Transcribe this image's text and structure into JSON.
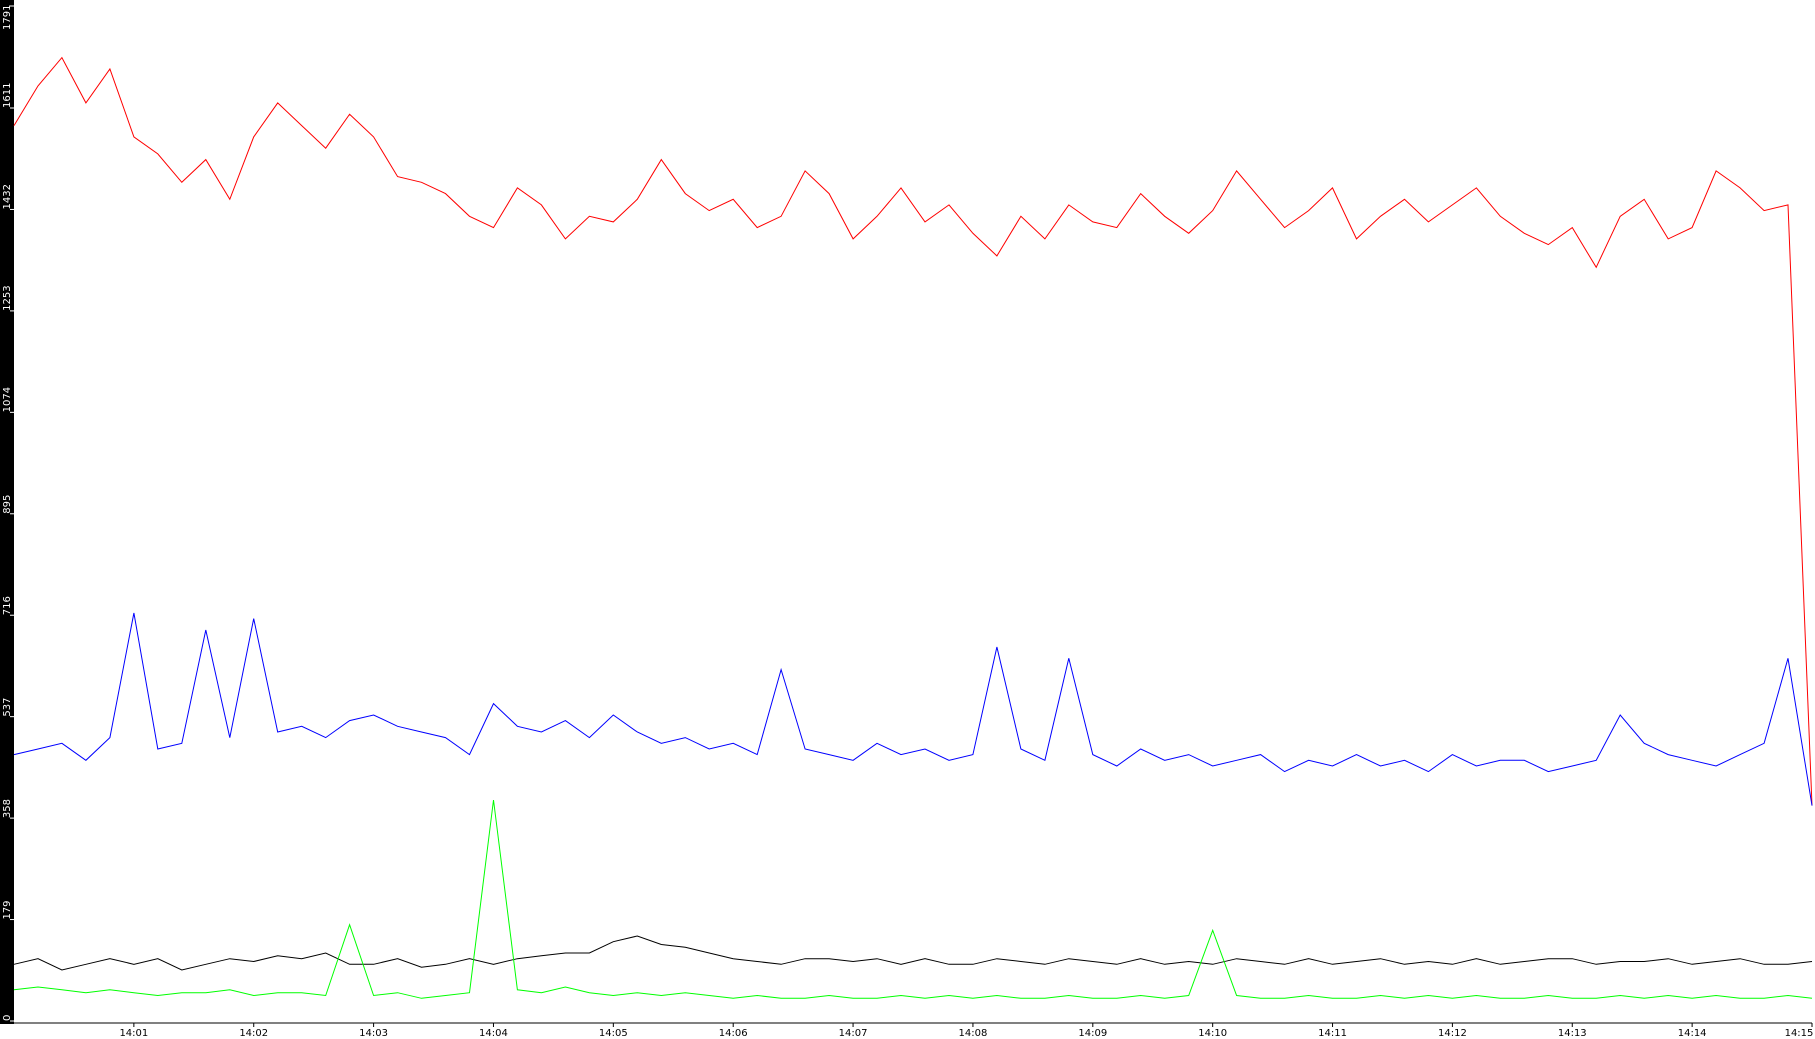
{
  "chart_data": {
    "type": "line",
    "x": [
      0,
      0.2,
      0.4,
      0.6,
      0.8,
      1,
      1.2,
      1.4,
      1.6,
      1.8,
      2,
      2.2,
      2.4,
      2.6,
      2.8,
      3,
      3.2,
      3.4,
      3.6,
      3.8,
      4,
      4.2,
      4.4,
      4.6,
      4.8,
      5,
      5.2,
      5.4,
      5.6,
      5.8,
      6,
      6.2,
      6.4,
      6.6,
      6.8,
      7,
      7.2,
      7.4,
      7.6,
      7.8,
      8,
      8.2,
      8.4,
      8.6,
      8.8,
      9,
      9.2,
      9.4,
      9.6,
      9.8,
      10,
      10.2,
      10.4,
      10.6,
      10.8,
      11,
      11.2,
      11.4,
      11.6,
      11.8,
      12,
      12.2,
      12.4,
      12.6,
      12.8,
      13,
      13.2,
      13.4,
      13.6,
      13.8,
      14,
      14.2,
      14.4,
      14.6,
      14.8,
      15
    ],
    "series": [
      {
        "color": "#ff0000",
        "values": [
          1580,
          1650,
          1700,
          1620,
          1680,
          1560,
          1530,
          1480,
          1520,
          1450,
          1560,
          1620,
          1580,
          1540,
          1600,
          1560,
          1490,
          1480,
          1460,
          1420,
          1400,
          1470,
          1440,
          1380,
          1420,
          1410,
          1450,
          1520,
          1460,
          1430,
          1450,
          1400,
          1420,
          1500,
          1460,
          1380,
          1420,
          1470,
          1410,
          1440,
          1390,
          1350,
          1420,
          1380,
          1440,
          1410,
          1400,
          1460,
          1420,
          1390,
          1430,
          1500,
          1450,
          1400,
          1430,
          1470,
          1380,
          1420,
          1450,
          1410,
          1440,
          1470,
          1420,
          1390,
          1370,
          1400,
          1330,
          1420,
          1450,
          1380,
          1400,
          1500,
          1470,
          1430,
          1440,
          380
        ]
      },
      {
        "color": "#0000ff",
        "values": [
          470,
          480,
          490,
          460,
          500,
          720,
          480,
          490,
          690,
          500,
          710,
          510,
          520,
          500,
          530,
          540,
          520,
          510,
          500,
          470,
          560,
          520,
          510,
          530,
          500,
          540,
          510,
          490,
          500,
          480,
          490,
          470,
          620,
          480,
          470,
          460,
          490,
          470,
          480,
          460,
          470,
          660,
          480,
          460,
          640,
          470,
          450,
          480,
          460,
          470,
          450,
          460,
          470,
          440,
          460,
          450,
          470,
          450,
          460,
          440,
          470,
          450,
          460,
          460,
          440,
          450,
          460,
          540,
          490,
          470,
          460,
          450,
          470,
          490,
          640,
          380
        ]
      },
      {
        "color": "#000000",
        "values": [
          100,
          110,
          90,
          100,
          110,
          100,
          110,
          90,
          100,
          110,
          105,
          115,
          110,
          120,
          100,
          100,
          110,
          95,
          100,
          110,
          100,
          110,
          115,
          120,
          120,
          140,
          150,
          135,
          130,
          120,
          110,
          105,
          100,
          110,
          110,
          105,
          110,
          100,
          110,
          100,
          100,
          110,
          105,
          100,
          110,
          105,
          100,
          110,
          100,
          105,
          100,
          110,
          105,
          100,
          110,
          100,
          105,
          110,
          100,
          105,
          100,
          110,
          100,
          105,
          110,
          110,
          100,
          105,
          105,
          110,
          100,
          105,
          110,
          100,
          100,
          105
        ]
      },
      {
        "color": "#00ff00",
        "values": [
          55,
          60,
          55,
          50,
          55,
          50,
          45,
          50,
          50,
          55,
          45,
          50,
          50,
          45,
          170,
          45,
          50,
          40,
          45,
          50,
          390,
          55,
          50,
          60,
          50,
          45,
          50,
          45,
          50,
          45,
          40,
          45,
          40,
          40,
          45,
          40,
          40,
          45,
          40,
          45,
          40,
          45,
          40,
          40,
          45,
          40,
          40,
          45,
          40,
          45,
          160,
          45,
          40,
          40,
          45,
          40,
          40,
          45,
          40,
          45,
          40,
          45,
          40,
          40,
          45,
          40,
          40,
          45,
          40,
          45,
          40,
          45,
          40,
          40,
          45,
          40
        ]
      }
    ],
    "xlim": [
      0,
      15
    ],
    "xticks": [
      {
        "value": 1,
        "label": "14:01"
      },
      {
        "value": 2,
        "label": "14:02"
      },
      {
        "value": 3,
        "label": "14:03"
      },
      {
        "value": 4,
        "label": "14:04"
      },
      {
        "value": 5,
        "label": "14:05"
      },
      {
        "value": 6,
        "label": "14:06"
      },
      {
        "value": 7,
        "label": "14:07"
      },
      {
        "value": 8,
        "label": "14:08"
      },
      {
        "value": 9,
        "label": "14:09"
      },
      {
        "value": 10,
        "label": "14:10"
      },
      {
        "value": 11,
        "label": "14:11"
      },
      {
        "value": 12,
        "label": "14:12"
      },
      {
        "value": 13,
        "label": "14:13"
      },
      {
        "value": 14,
        "label": "14:14"
      },
      {
        "value": 15,
        "label": "14:15"
      }
    ],
    "ylim": [
      0,
      1791
    ],
    "yticks": [
      0,
      179,
      358,
      537,
      716,
      895,
      1074,
      1253,
      1432,
      1611,
      1791
    ]
  }
}
